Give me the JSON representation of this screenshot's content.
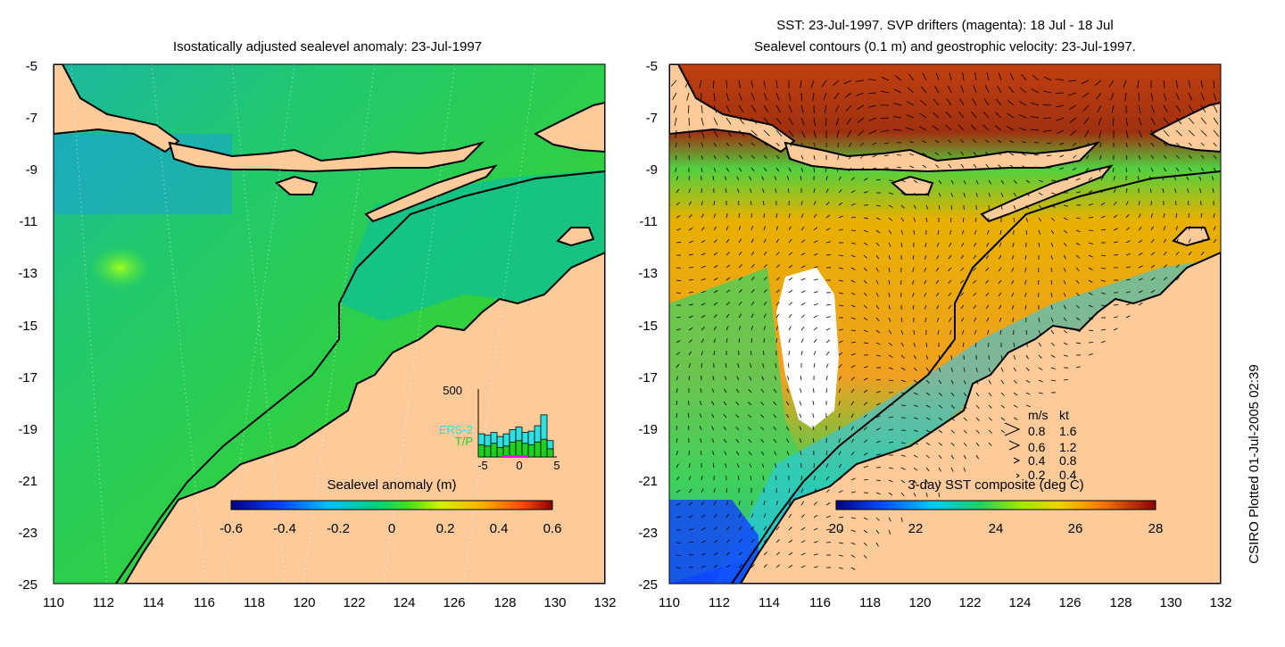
{
  "colors": {
    "land": "#fccb99",
    "ocean_left": "#1bc45a",
    "ocean_right": "#f0a020",
    "coast": "#000000"
  },
  "left_panel": {
    "title": "Isostatically adjusted sealevel anomaly: 23-Jul-1997",
    "y_ticks": [
      "-5",
      "-7",
      "-9",
      "-11",
      "-13",
      "-15",
      "-17",
      "-19",
      "-21",
      "-23",
      "-25"
    ],
    "x_ticks": [
      "110",
      "112",
      "114",
      "116",
      "118",
      "120",
      "122",
      "124",
      "126",
      "128",
      "130",
      "132"
    ],
    "colorbar": {
      "title": "Sealevel anomaly (m)",
      "ticks": [
        "-0.6",
        "-0.4",
        "-0.2",
        "0",
        "0.2",
        "0.4",
        "0.6"
      ]
    },
    "histogram": {
      "ymax_label": "500",
      "legend": [
        "ERS-2",
        "T/P"
      ],
      "x_ticks": [
        "-5",
        "0",
        "5"
      ],
      "ers2_counts": [
        170,
        160,
        180,
        150,
        170,
        200,
        220,
        180,
        190,
        230,
        310,
        120
      ],
      "tp_counts": [
        90,
        80,
        100,
        70,
        80,
        110,
        120,
        100,
        90,
        110,
        130,
        60
      ]
    }
  },
  "right_panel": {
    "title_line1": "SST: 23-Jul-1997. SVP drifters (magenta): 18 Jul - 18 Jul",
    "title_line2": "Sealevel contours (0.1 m) and geostrophic velocity: 23-Jul-1997.",
    "y_ticks": [
      "-5",
      "-7",
      "-9",
      "-11",
      "-13",
      "-15",
      "-17",
      "-19",
      "-21",
      "-23",
      "-25"
    ],
    "x_ticks": [
      "110",
      "112",
      "114",
      "116",
      "118",
      "120",
      "122",
      "124",
      "126",
      "128",
      "130",
      "132"
    ],
    "velocity_legend": {
      "header_ms": "m/s",
      "header_kt": "kt",
      "rows": [
        {
          "ms": "0.8",
          "kt": "1.6"
        },
        {
          "ms": "0.6",
          "kt": "1.2"
        },
        {
          "ms": "0.4",
          "kt": "0.8"
        },
        {
          "ms": "0.2",
          "kt": "0.4"
        }
      ]
    },
    "colorbar": {
      "title": "3-day SST composite (deg C)",
      "ticks": [
        "20",
        "22",
        "24",
        "26",
        "28"
      ]
    }
  },
  "side_label": "CSIRO Plotted 01-Jul-2005 02:39"
}
